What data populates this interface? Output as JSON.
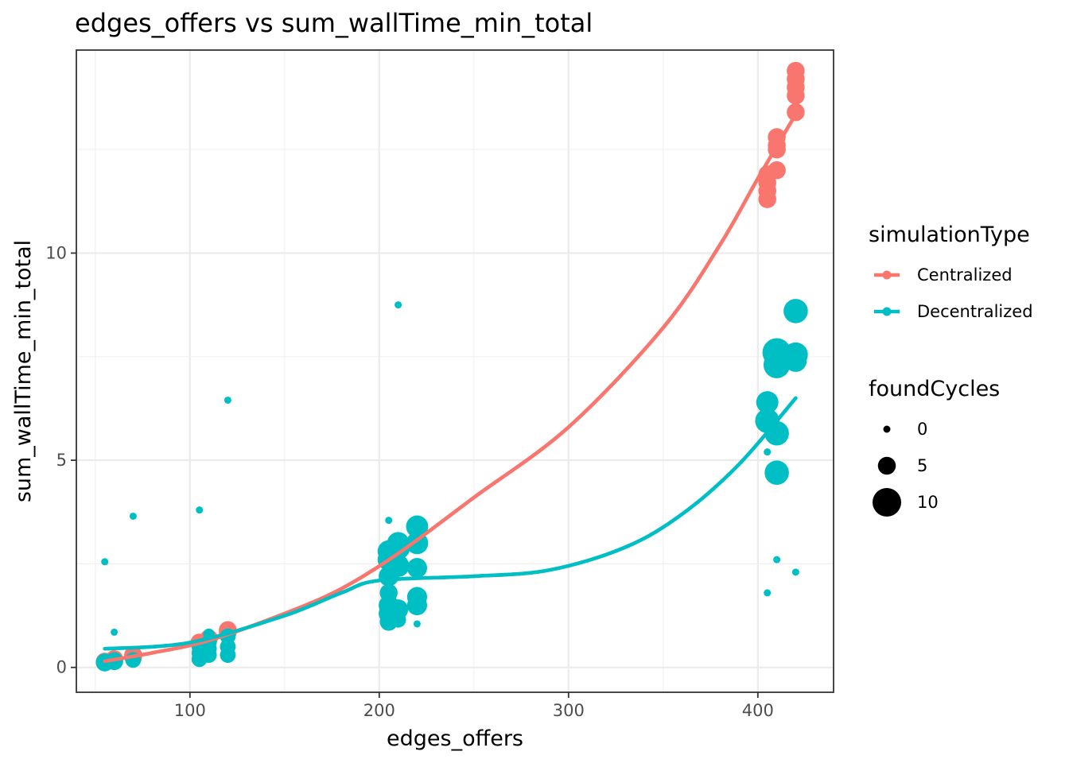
{
  "chart_data": {
    "type": "scatter",
    "title": "edges_offers  vs  sum_wallTime_min_total",
    "xlabel": "edges_offers",
    "ylabel": "sum_wallTime_min_total",
    "xlim": [
      40,
      440
    ],
    "ylim": [
      -0.6,
      14.9
    ],
    "xticks": [
      100,
      200,
      300,
      400
    ],
    "yticks": [
      0,
      5,
      10
    ],
    "x_tick_labels": [
      "100",
      "200",
      "300",
      "400"
    ],
    "y_tick_labels": [
      "0",
      "5",
      "10"
    ],
    "grid": true,
    "legend_position": "right",
    "colors": {
      "Centralized": "#F8766D",
      "Decentralized": "#00BFC4"
    },
    "legend": {
      "color_title": "simulationType",
      "color_entries": [
        "Centralized",
        "Decentralized"
      ],
      "size_title": "foundCycles",
      "size_entries": [
        {
          "label": "0",
          "value": 0
        },
        {
          "label": "5",
          "value": 5
        },
        {
          "label": "10",
          "value": 10
        }
      ]
    },
    "series": [
      {
        "name": "Centralized",
        "points": [
          {
            "x": 55,
            "y": 0.14,
            "size": 5
          },
          {
            "x": 55,
            "y": 0.12,
            "size": 5
          },
          {
            "x": 60,
            "y": 0.18,
            "size": 5
          },
          {
            "x": 60,
            "y": 0.2,
            "size": 5
          },
          {
            "x": 70,
            "y": 0.25,
            "size": 5
          },
          {
            "x": 70,
            "y": 0.3,
            "size": 5
          },
          {
            "x": 105,
            "y": 0.6,
            "size": 5
          },
          {
            "x": 110,
            "y": 0.7,
            "size": 5
          },
          {
            "x": 120,
            "y": 0.9,
            "size": 5
          },
          {
            "x": 120,
            "y": 0.85,
            "size": 5
          },
          {
            "x": 220,
            "y": 3.35,
            "size": 5
          },
          {
            "x": 405,
            "y": 11.3,
            "size": 5
          },
          {
            "x": 405,
            "y": 11.5,
            "size": 5
          },
          {
            "x": 405,
            "y": 11.7,
            "size": 5
          },
          {
            "x": 405,
            "y": 11.9,
            "size": 5
          },
          {
            "x": 410,
            "y": 12.0,
            "size": 5
          },
          {
            "x": 410,
            "y": 12.5,
            "size": 5
          },
          {
            "x": 410,
            "y": 12.6,
            "size": 5
          },
          {
            "x": 410,
            "y": 12.8,
            "size": 5
          },
          {
            "x": 420,
            "y": 13.4,
            "size": 5
          },
          {
            "x": 420,
            "y": 13.8,
            "size": 5
          },
          {
            "x": 420,
            "y": 14.0,
            "size": 5
          },
          {
            "x": 420,
            "y": 14.2,
            "size": 5
          },
          {
            "x": 420,
            "y": 14.4,
            "size": 5
          }
        ],
        "trend": [
          {
            "x": 55,
            "y": 0.15
          },
          {
            "x": 80,
            "y": 0.35
          },
          {
            "x": 110,
            "y": 0.65
          },
          {
            "x": 150,
            "y": 1.3
          },
          {
            "x": 180,
            "y": 1.9
          },
          {
            "x": 210,
            "y": 2.75
          },
          {
            "x": 250,
            "y": 4.1
          },
          {
            "x": 300,
            "y": 5.8
          },
          {
            "x": 350,
            "y": 8.2
          },
          {
            "x": 380,
            "y": 10.2
          },
          {
            "x": 400,
            "y": 11.8
          },
          {
            "x": 420,
            "y": 13.35
          }
        ]
      },
      {
        "name": "Decentralized",
        "points": [
          {
            "x": 55,
            "y": 2.55,
            "size": 0
          },
          {
            "x": 55,
            "y": 0.12,
            "size": 5
          },
          {
            "x": 60,
            "y": 0.85,
            "size": 0
          },
          {
            "x": 60,
            "y": 0.15,
            "size": 5
          },
          {
            "x": 70,
            "y": 3.65,
            "size": 0
          },
          {
            "x": 70,
            "y": 0.18,
            "size": 4
          },
          {
            "x": 105,
            "y": 3.8,
            "size": 0
          },
          {
            "x": 105,
            "y": 0.2,
            "size": 4
          },
          {
            "x": 105,
            "y": 0.35,
            "size": 4
          },
          {
            "x": 105,
            "y": 0.5,
            "size": 4
          },
          {
            "x": 110,
            "y": 0.3,
            "size": 4
          },
          {
            "x": 110,
            "y": 0.45,
            "size": 4
          },
          {
            "x": 110,
            "y": 0.6,
            "size": 4
          },
          {
            "x": 110,
            "y": 0.8,
            "size": 2
          },
          {
            "x": 120,
            "y": 6.45,
            "size": 0
          },
          {
            "x": 120,
            "y": 0.3,
            "size": 4
          },
          {
            "x": 120,
            "y": 0.5,
            "size": 4
          },
          {
            "x": 120,
            "y": 0.75,
            "size": 4
          },
          {
            "x": 205,
            "y": 3.55,
            "size": 0
          },
          {
            "x": 205,
            "y": 1.1,
            "size": 5
          },
          {
            "x": 205,
            "y": 1.3,
            "size": 6
          },
          {
            "x": 205,
            "y": 1.5,
            "size": 6
          },
          {
            "x": 205,
            "y": 1.8,
            "size": 5
          },
          {
            "x": 205,
            "y": 2.2,
            "size": 6
          },
          {
            "x": 205,
            "y": 2.6,
            "size": 7
          },
          {
            "x": 205,
            "y": 2.8,
            "size": 7
          },
          {
            "x": 210,
            "y": 8.75,
            "size": 0
          },
          {
            "x": 210,
            "y": 1.15,
            "size": 4
          },
          {
            "x": 210,
            "y": 1.4,
            "size": 6
          },
          {
            "x": 210,
            "y": 2.45,
            "size": 7
          },
          {
            "x": 210,
            "y": 2.9,
            "size": 8
          },
          {
            "x": 210,
            "y": 3.0,
            "size": 7
          },
          {
            "x": 220,
            "y": 1.05,
            "size": 0
          },
          {
            "x": 220,
            "y": 1.5,
            "size": 6
          },
          {
            "x": 220,
            "y": 1.7,
            "size": 6
          },
          {
            "x": 220,
            "y": 2.4,
            "size": 6
          },
          {
            "x": 220,
            "y": 3.0,
            "size": 7
          },
          {
            "x": 220,
            "y": 3.4,
            "size": 7
          },
          {
            "x": 405,
            "y": 1.8,
            "size": 0
          },
          {
            "x": 405,
            "y": 5.2,
            "size": 0
          },
          {
            "x": 405,
            "y": 5.95,
            "size": 8
          },
          {
            "x": 405,
            "y": 6.4,
            "size": 7
          },
          {
            "x": 410,
            "y": 2.6,
            "size": 0
          },
          {
            "x": 410,
            "y": 4.7,
            "size": 8
          },
          {
            "x": 410,
            "y": 5.65,
            "size": 8
          },
          {
            "x": 410,
            "y": 7.3,
            "size": 9
          },
          {
            "x": 410,
            "y": 7.6,
            "size": 10
          },
          {
            "x": 420,
            "y": 2.3,
            "size": 0
          },
          {
            "x": 420,
            "y": 7.4,
            "size": 7
          },
          {
            "x": 420,
            "y": 7.55,
            "size": 8
          },
          {
            "x": 420,
            "y": 8.6,
            "size": 8
          }
        ],
        "trend": [
          {
            "x": 55,
            "y": 0.45
          },
          {
            "x": 100,
            "y": 0.6
          },
          {
            "x": 150,
            "y": 1.25
          },
          {
            "x": 180,
            "y": 1.8
          },
          {
            "x": 200,
            "y": 2.1
          },
          {
            "x": 250,
            "y": 2.2
          },
          {
            "x": 290,
            "y": 2.35
          },
          {
            "x": 330,
            "y": 2.9
          },
          {
            "x": 360,
            "y": 3.7
          },
          {
            "x": 390,
            "y": 4.9
          },
          {
            "x": 420,
            "y": 6.5
          }
        ]
      }
    ]
  }
}
